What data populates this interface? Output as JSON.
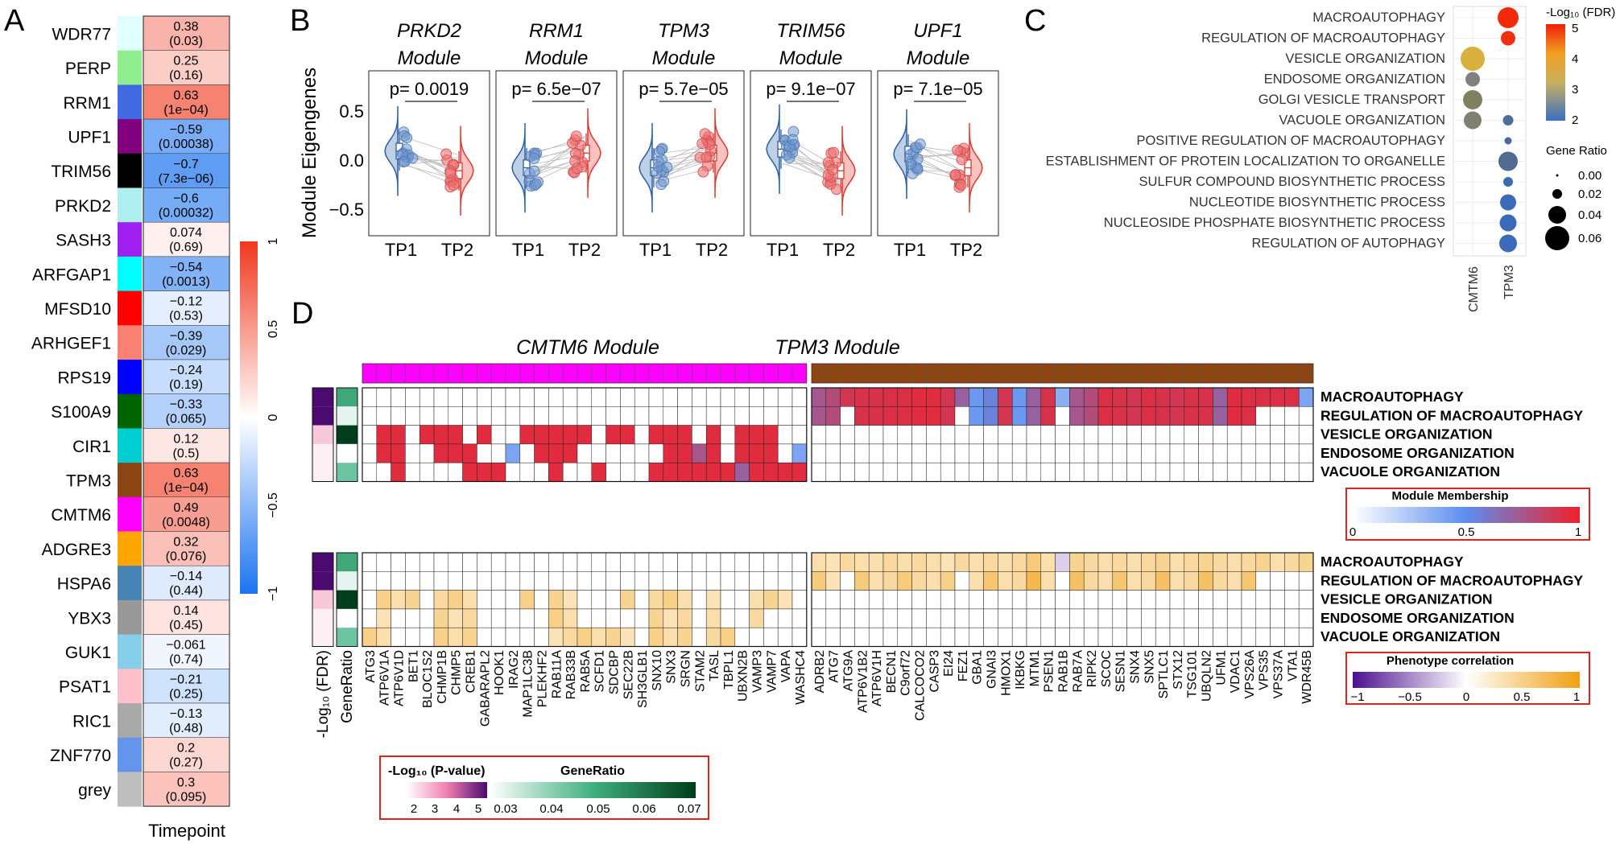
{
  "panel_letters": [
    "A",
    "B",
    "C",
    "D"
  ],
  "panelA": {
    "modules": [
      {
        "name": "WDR77",
        "r": "0.38",
        "p": "(0.03)",
        "color": "#e0ffff"
      },
      {
        "name": "PERP",
        "r": "0.25",
        "p": "(0.16)",
        "color": "#90ee90"
      },
      {
        "name": "RRM1",
        "r": "0.63",
        "p": "(1e−04)",
        "color": "#4169e1"
      },
      {
        "name": "UPF1",
        "r": "−0.59",
        "p": "(0.00038)",
        "color": "#800080"
      },
      {
        "name": "TRIM56",
        "r": "−0.7",
        "p": "(7.3e−06)",
        "color": "#000000"
      },
      {
        "name": "PRKD2",
        "r": "−0.6",
        "p": "(0.00032)",
        "color": "#afeeee"
      },
      {
        "name": "SASH3",
        "r": "0.074",
        "p": "(0.69)",
        "color": "#a020f0"
      },
      {
        "name": "ARFGAP1",
        "r": "−0.54",
        "p": "(0.0013)",
        "color": "#00ffff"
      },
      {
        "name": "MFSD10",
        "r": "−0.12",
        "p": "(0.53)",
        "color": "#ff0000"
      },
      {
        "name": "ARHGEF1",
        "r": "−0.39",
        "p": "(0.029)",
        "color": "#fa8072"
      },
      {
        "name": "RPS19",
        "r": "−0.24",
        "p": "(0.19)",
        "color": "#0000ff"
      },
      {
        "name": "S100A9",
        "r": "−0.33",
        "p": "(0.065)",
        "color": "#006400"
      },
      {
        "name": "CIR1",
        "r": "0.12",
        "p": "(0.5)",
        "color": "#00ced1"
      },
      {
        "name": "TPM3",
        "r": "0.63",
        "p": "(1e−04)",
        "color": "#8b4513"
      },
      {
        "name": "CMTM6",
        "r": "0.49",
        "p": "(0.0048)",
        "color": "#ff00ff"
      },
      {
        "name": "ADGRE3",
        "r": "0.32",
        "p": "(0.076)",
        "color": "#ffa500"
      },
      {
        "name": "HSPA6",
        "r": "−0.14",
        "p": "(0.44)",
        "color": "#4682b4"
      },
      {
        "name": "YBX3",
        "r": "0.14",
        "p": "(0.45)",
        "color": "#999999"
      },
      {
        "name": "GUK1",
        "r": "−0.061",
        "p": "(0.74)",
        "color": "#87ceeb"
      },
      {
        "name": "PSAT1",
        "r": "−0.21",
        "p": "(0.25)",
        "color": "#ffc0cb"
      },
      {
        "name": "RIC1",
        "r": "−0.13",
        "p": "(0.48)",
        "color": "#a9a9a9"
      },
      {
        "name": "ZNF770",
        "r": "0.2",
        "p": "(0.27)",
        "color": "#6495ed"
      },
      {
        "name": "grey",
        "r": "0.3",
        "p": "(0.095)",
        "color": "#bebebe"
      }
    ],
    "values": [
      0.38,
      0.25,
      0.63,
      -0.59,
      -0.7,
      -0.6,
      0.074,
      -0.54,
      -0.12,
      -0.39,
      -0.24,
      -0.33,
      0.12,
      0.63,
      0.49,
      0.32,
      -0.14,
      0.14,
      -0.061,
      -0.21,
      -0.13,
      0.2,
      0.3
    ],
    "xlabel": "Timepoint",
    "colorbar_ticks": [
      "1",
      "0.5",
      "0",
      "−0.5",
      "−1"
    ]
  },
  "panelB": {
    "ylabel": "Module Eigengenes",
    "yticks": [
      "0.5",
      "0.0",
      "−0.5"
    ],
    "xticks": [
      "TP1",
      "TP2"
    ],
    "modules": [
      {
        "gene": "PRKD2",
        "suffix": "Module",
        "p": "p= 0.0019",
        "tp1": 0.1,
        "tp2": -0.1
      },
      {
        "gene": "RRM1",
        "suffix": "Module",
        "p": "p= 6.5e−07",
        "tp1": -0.07,
        "tp2": 0.08
      },
      {
        "gene": "TPM3",
        "suffix": "Module",
        "p": "p= 5.7e−05",
        "tp1": -0.07,
        "tp2": 0.08
      },
      {
        "gene": "TRIM56",
        "suffix": "Module",
        "p": "p= 9.1e−07",
        "tp1": 0.12,
        "tp2": -0.1
      },
      {
        "gene": "UPF1",
        "suffix": "Module",
        "p": "p= 7.1e−05",
        "tp1": 0.07,
        "tp2": -0.07
      }
    ]
  },
  "panelC": {
    "terms": [
      "MACROAUTOPHAGY",
      "REGULATION OF MACROAUTOPHAGY",
      "VESICLE ORGANIZATION",
      "ENDOSOME ORGANIZATION",
      "GOLGI VESICLE TRANSPORT",
      "VACUOLE ORGANIZATION",
      "POSITIVE REGULATION OF MACROAUTOPHAGY",
      "ESTABLISHMENT OF PROTEIN LOCALIZATION TO ORGANELLE",
      "SULFUR COMPOUND BIOSYNTHETIC PROCESS",
      "NUCLEOTIDE BIOSYNTHETIC PROCESS",
      "NUCLEOSIDE PHOSPHATE BIOSYNTHETIC PROCESS",
      "REGULATION OF AUTOPHAGY"
    ],
    "columns": [
      "CMTM6",
      "TPM3"
    ],
    "legend_fdr_title": "-Log₁₀ (FDR)",
    "legend_fdr_ticks": [
      "5",
      "4",
      "3",
      "2"
    ],
    "legend_ratio_title": "Gene Ratio",
    "legend_ratio_ticks": [
      "0.00",
      "0.02",
      "0.04",
      "0.06"
    ]
  },
  "panelD": {
    "cmtm6_title": "CMTM6 Module",
    "tpm3_title": "TPM3 Module",
    "terms": [
      "MACROAUTOPHAGY",
      "REGULATION OF MACROAUTOPHAGY",
      "VESICLE ORGANIZATION",
      "ENDOSOME ORGANIZATION",
      "VACUOLE ORGANIZATION"
    ],
    "cmtm6_genes": [
      "ATG3",
      "ATP6V1A",
      "ATP6V1D",
      "BET1",
      "BLOC1S2",
      "CHMP1B",
      "CHMP5",
      "CREB1",
      "GABARAPL2",
      "HOOK1",
      "IRAG2",
      "MAP1LC3B",
      "PLEKHF2",
      "RAB11A",
      "RAB33B",
      "RAB5A",
      "SCFD1",
      "SDCBP",
      "SEC22B",
      "SH3GLB1",
      "SNX10",
      "SNX3",
      "SRGN",
      "STAM2",
      "TASL",
      "TBPL1",
      "UBXN2B",
      "VAMP3",
      "VAMP7",
      "VAPA",
      "WASHC4"
    ],
    "tpm3_genes": [
      "ADRB2",
      "ATG7",
      "ATG9A",
      "ATP6V1B2",
      "ATP6V1H",
      "BECN1",
      "C9orf72",
      "CALCOCO2",
      "CASP3",
      "EI24",
      "FEZ1",
      "GBA1",
      "GNAI3",
      "HMOX1",
      "IKBKG",
      "MTM1",
      "PSEN1",
      "RAB1B",
      "RAB7A",
      "RIPK2",
      "SCOC",
      "SESN1",
      "SNX4",
      "SNX5",
      "SPTLC1",
      "STX12",
      "TSG101",
      "UBQLN2",
      "UFM1",
      "VDAC1",
      "VPS26A",
      "VPS35",
      "VPS37A",
      "VTA1",
      "WDR45B"
    ],
    "side_labels": [
      "-Log₁₀ (FDR)",
      "GeneRatio"
    ],
    "mm_legend_title": "Module Membership",
    "mm_legend_ticks": [
      "0",
      "0.5",
      "1"
    ],
    "pc_legend_title": "Phenotype correlation",
    "pc_legend_ticks": [
      "−1",
      "−0.5",
      "0",
      "0.5",
      "1"
    ],
    "bottom_legend_p_title": "-Log₁₀ (P-value)",
    "bottom_legend_p_ticks": [
      "2",
      "3",
      "4",
      "5"
    ],
    "bottom_legend_gr_title": "GeneRatio",
    "bottom_legend_gr_ticks": [
      "0.03",
      "0.04",
      "0.05",
      "0.06",
      "0.07"
    ]
  }
}
